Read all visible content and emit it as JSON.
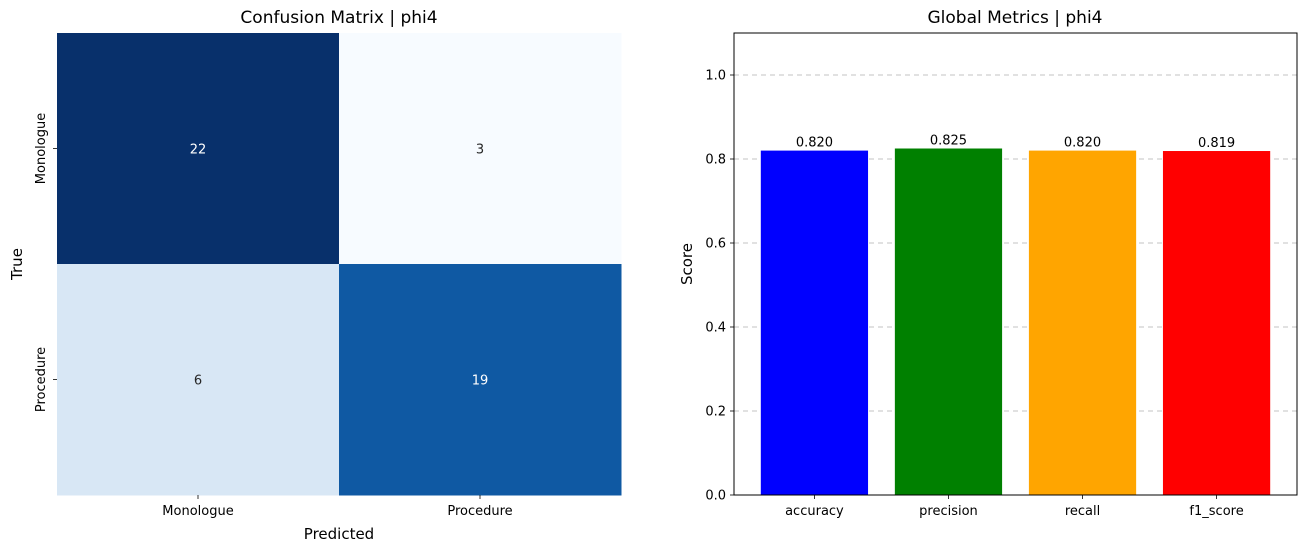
{
  "chart_data": [
    {
      "type": "heatmap",
      "title": "Confusion Matrix | phi4",
      "xlabel": "Predicted",
      "ylabel": "True",
      "x_categories": [
        "Monologue",
        "Procedure"
      ],
      "y_categories": [
        "Monologue",
        "Procedure"
      ],
      "values": [
        [
          22,
          3
        ],
        [
          6,
          19
        ]
      ],
      "colormap": "Blues",
      "colorbar": false
    },
    {
      "type": "bar",
      "title": "Global Metrics | phi4",
      "xlabel": "",
      "ylabel": "Score",
      "categories": [
        "accuracy",
        "precision",
        "recall",
        "f1_score"
      ],
      "values": [
        0.82,
        0.825,
        0.82,
        0.819
      ],
      "value_labels": [
        "0.820",
        "0.825",
        "0.820",
        "0.819"
      ],
      "colors": [
        "#0000ff",
        "#008000",
        "#ffa500",
        "#ff0000"
      ],
      "ylim": [
        0,
        1.1
      ],
      "yticks": [
        0.0,
        0.2,
        0.4,
        0.6,
        0.8,
        1.0
      ],
      "ytick_labels": [
        "0.0",
        "0.2",
        "0.4",
        "0.6",
        "0.8",
        "1.0"
      ],
      "grid": "y-dashed"
    }
  ]
}
